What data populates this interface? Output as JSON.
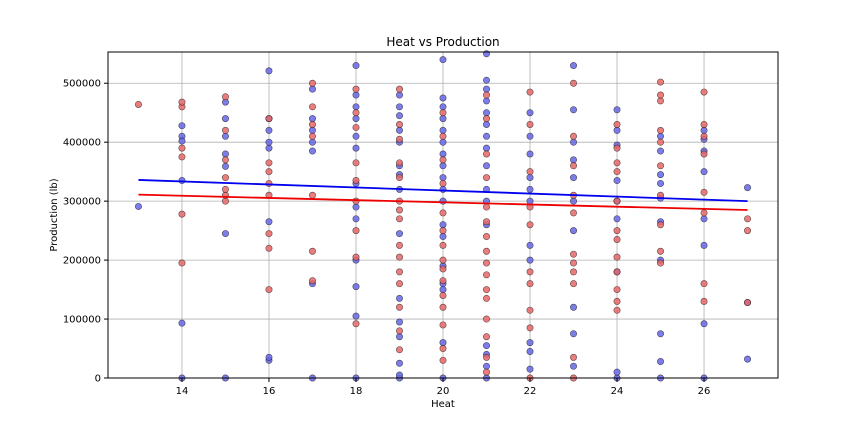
{
  "chart_data": {
    "type": "scatter",
    "title": "Heat vs Production",
    "xlabel": "Heat",
    "ylabel": "Production (lb)",
    "xlim": [
      12.3,
      27.7
    ],
    "ylim": [
      0,
      553000
    ],
    "xticks": [
      14,
      16,
      18,
      20,
      22,
      24,
      26
    ],
    "yticks": [
      0,
      100000,
      200000,
      300000,
      400000,
      500000
    ],
    "xtick_labels": [
      "14",
      "16",
      "18",
      "20",
      "22",
      "24",
      "26"
    ],
    "ytick_labels": [
      "0",
      "100000",
      "200000",
      "300000",
      "400000",
      "500000"
    ],
    "grid": true,
    "series": [
      {
        "color": "#6666e6",
        "line_color": "#0000ee",
        "trend": [
          [
            13,
            336000
          ],
          [
            27,
            300000
          ]
        ],
        "points": [
          [
            13,
            291000
          ],
          [
            14,
            0
          ],
          [
            14,
            93000
          ],
          [
            14,
            335000
          ],
          [
            14,
            410000
          ],
          [
            14,
            402000
          ],
          [
            14,
            428000
          ],
          [
            15,
            0
          ],
          [
            15,
            245000
          ],
          [
            15,
            359000
          ],
          [
            15,
            380000
          ],
          [
            15,
            410000
          ],
          [
            15,
            440000
          ],
          [
            15,
            468000
          ],
          [
            16,
            30000
          ],
          [
            16,
            35000
          ],
          [
            16,
            265000
          ],
          [
            16,
            390000
          ],
          [
            16,
            400000
          ],
          [
            16,
            420000
          ],
          [
            16,
            440000
          ],
          [
            16,
            521000
          ],
          [
            17,
            0
          ],
          [
            17,
            160000
          ],
          [
            17,
            385000
          ],
          [
            17,
            400000
          ],
          [
            17,
            420000
          ],
          [
            17,
            440000
          ],
          [
            17,
            490000
          ],
          [
            18,
            0
          ],
          [
            18,
            105000
          ],
          [
            18,
            155000
          ],
          [
            18,
            200000
          ],
          [
            18,
            270000
          ],
          [
            18,
            290000
          ],
          [
            18,
            330000
          ],
          [
            18,
            390000
          ],
          [
            18,
            410000
          ],
          [
            18,
            440000
          ],
          [
            18,
            460000
          ],
          [
            18,
            480000
          ],
          [
            18,
            530000
          ],
          [
            19,
            0
          ],
          [
            19,
            5000
          ],
          [
            19,
            25000
          ],
          [
            19,
            70000
          ],
          [
            19,
            95000
          ],
          [
            19,
            135000
          ],
          [
            19,
            245000
          ],
          [
            19,
            320000
          ],
          [
            19,
            345000
          ],
          [
            19,
            360000
          ],
          [
            19,
            400000
          ],
          [
            19,
            420000
          ],
          [
            19,
            445000
          ],
          [
            19,
            460000
          ],
          [
            19,
            480000
          ],
          [
            20,
            0
          ],
          [
            20,
            60000
          ],
          [
            20,
            150000
          ],
          [
            20,
            160000
          ],
          [
            20,
            190000
          ],
          [
            20,
            240000
          ],
          [
            20,
            260000
          ],
          [
            20,
            300000
          ],
          [
            20,
            320000
          ],
          [
            20,
            340000
          ],
          [
            20,
            360000
          ],
          [
            20,
            380000
          ],
          [
            20,
            400000
          ],
          [
            20,
            420000
          ],
          [
            20,
            440000
          ],
          [
            20,
            460000
          ],
          [
            20,
            475000
          ],
          [
            20,
            540000
          ],
          [
            21,
            0
          ],
          [
            21,
            20000
          ],
          [
            21,
            40000
          ],
          [
            21,
            55000
          ],
          [
            21,
            260000
          ],
          [
            21,
            300000
          ],
          [
            21,
            320000
          ],
          [
            21,
            360000
          ],
          [
            21,
            390000
          ],
          [
            21,
            410000
          ],
          [
            21,
            430000
          ],
          [
            21,
            450000
          ],
          [
            21,
            470000
          ],
          [
            21,
            490000
          ],
          [
            21,
            505000
          ],
          [
            21,
            550000
          ],
          [
            22,
            15000
          ],
          [
            22,
            45000
          ],
          [
            22,
            60000
          ],
          [
            22,
            200000
          ],
          [
            22,
            225000
          ],
          [
            22,
            300000
          ],
          [
            22,
            320000
          ],
          [
            22,
            340000
          ],
          [
            22,
            380000
          ],
          [
            22,
            410000
          ],
          [
            22,
            450000
          ],
          [
            23,
            20000
          ],
          [
            23,
            75000
          ],
          [
            23,
            120000
          ],
          [
            23,
            250000
          ],
          [
            23,
            300000
          ],
          [
            23,
            340000
          ],
          [
            23,
            370000
          ],
          [
            23,
            400000
          ],
          [
            23,
            455000
          ],
          [
            23,
            530000
          ],
          [
            24,
            0
          ],
          [
            24,
            10000
          ],
          [
            24,
            180000
          ],
          [
            24,
            270000
          ],
          [
            24,
            300000
          ],
          [
            24,
            335000
          ],
          [
            24,
            395000
          ],
          [
            24,
            420000
          ],
          [
            24,
            455000
          ],
          [
            25,
            0
          ],
          [
            25,
            28000
          ],
          [
            25,
            75000
          ],
          [
            25,
            200000
          ],
          [
            25,
            265000
          ],
          [
            25,
            305000
          ],
          [
            25,
            330000
          ],
          [
            25,
            345000
          ],
          [
            25,
            385000
          ],
          [
            25,
            410000
          ],
          [
            26,
            0
          ],
          [
            26,
            92000
          ],
          [
            26,
            225000
          ],
          [
            26,
            270000
          ],
          [
            26,
            350000
          ],
          [
            26,
            385000
          ],
          [
            26,
            405000
          ],
          [
            26,
            420000
          ],
          [
            27,
            32000
          ],
          [
            27,
            128000
          ],
          [
            27,
            323000
          ]
        ]
      },
      {
        "color": "#e66666",
        "line_color": "#ee0000",
        "trend": [
          [
            13,
            311000
          ],
          [
            27,
            285000
          ]
        ],
        "points": [
          [
            13,
            464000
          ],
          [
            14,
            195000
          ],
          [
            14,
            278000
          ],
          [
            14,
            375000
          ],
          [
            14,
            390000
          ],
          [
            14,
            460000
          ],
          [
            14,
            468000
          ],
          [
            15,
            300000
          ],
          [
            15,
            310000
          ],
          [
            15,
            320000
          ],
          [
            15,
            340000
          ],
          [
            15,
            370000
          ],
          [
            15,
            420000
          ],
          [
            15,
            477000
          ],
          [
            16,
            150000
          ],
          [
            16,
            220000
          ],
          [
            16,
            245000
          ],
          [
            16,
            310000
          ],
          [
            16,
            330000
          ],
          [
            16,
            350000
          ],
          [
            16,
            365000
          ],
          [
            16,
            440000
          ],
          [
            17,
            165000
          ],
          [
            17,
            215000
          ],
          [
            17,
            310000
          ],
          [
            17,
            410000
          ],
          [
            17,
            430000
          ],
          [
            17,
            460000
          ],
          [
            17,
            500000
          ],
          [
            18,
            92000
          ],
          [
            18,
            205000
          ],
          [
            18,
            250000
          ],
          [
            18,
            300000
          ],
          [
            18,
            335000
          ],
          [
            18,
            365000
          ],
          [
            18,
            425000
          ],
          [
            18,
            450000
          ],
          [
            18,
            490000
          ],
          [
            19,
            48000
          ],
          [
            19,
            80000
          ],
          [
            19,
            120000
          ],
          [
            19,
            160000
          ],
          [
            19,
            180000
          ],
          [
            19,
            205000
          ],
          [
            19,
            225000
          ],
          [
            19,
            270000
          ],
          [
            19,
            285000
          ],
          [
            19,
            300000
          ],
          [
            19,
            340000
          ],
          [
            19,
            365000
          ],
          [
            19,
            405000
          ],
          [
            19,
            430000
          ],
          [
            19,
            490000
          ],
          [
            20,
            30000
          ],
          [
            20,
            50000
          ],
          [
            20,
            90000
          ],
          [
            20,
            120000
          ],
          [
            20,
            140000
          ],
          [
            20,
            165000
          ],
          [
            20,
            185000
          ],
          [
            20,
            200000
          ],
          [
            20,
            225000
          ],
          [
            20,
            250000
          ],
          [
            20,
            280000
          ],
          [
            20,
            330000
          ],
          [
            20,
            370000
          ],
          [
            20,
            410000
          ],
          [
            20,
            450000
          ],
          [
            21,
            10000
          ],
          [
            21,
            35000
          ],
          [
            21,
            70000
          ],
          [
            21,
            100000
          ],
          [
            21,
            135000
          ],
          [
            21,
            150000
          ],
          [
            21,
            175000
          ],
          [
            21,
            195000
          ],
          [
            21,
            215000
          ],
          [
            21,
            240000
          ],
          [
            21,
            265000
          ],
          [
            21,
            290000
          ],
          [
            21,
            340000
          ],
          [
            21,
            380000
          ],
          [
            21,
            440000
          ],
          [
            21,
            480000
          ],
          [
            22,
            0
          ],
          [
            22,
            85000
          ],
          [
            22,
            115000
          ],
          [
            22,
            160000
          ],
          [
            22,
            180000
          ],
          [
            22,
            260000
          ],
          [
            22,
            290000
          ],
          [
            22,
            350000
          ],
          [
            22,
            430000
          ],
          [
            22,
            485000
          ],
          [
            23,
            0
          ],
          [
            23,
            35000
          ],
          [
            23,
            160000
          ],
          [
            23,
            180000
          ],
          [
            23,
            195000
          ],
          [
            23,
            210000
          ],
          [
            23,
            280000
          ],
          [
            23,
            310000
          ],
          [
            23,
            360000
          ],
          [
            23,
            410000
          ],
          [
            23,
            500000
          ],
          [
            24,
            115000
          ],
          [
            24,
            130000
          ],
          [
            24,
            150000
          ],
          [
            24,
            180000
          ],
          [
            24,
            205000
          ],
          [
            24,
            235000
          ],
          [
            24,
            250000
          ],
          [
            24,
            300000
          ],
          [
            24,
            350000
          ],
          [
            24,
            365000
          ],
          [
            24,
            390000
          ],
          [
            24,
            430000
          ],
          [
            25,
            195000
          ],
          [
            25,
            215000
          ],
          [
            25,
            260000
          ],
          [
            25,
            310000
          ],
          [
            25,
            360000
          ],
          [
            25,
            400000
          ],
          [
            25,
            420000
          ],
          [
            25,
            470000
          ],
          [
            25,
            480000
          ],
          [
            25,
            502000
          ],
          [
            26,
            130000
          ],
          [
            26,
            160000
          ],
          [
            26,
            280000
          ],
          [
            26,
            315000
          ],
          [
            26,
            380000
          ],
          [
            26,
            410000
          ],
          [
            26,
            430000
          ],
          [
            26,
            485000
          ],
          [
            27,
            128000
          ],
          [
            27,
            250000
          ],
          [
            27,
            270000
          ]
        ]
      }
    ]
  }
}
